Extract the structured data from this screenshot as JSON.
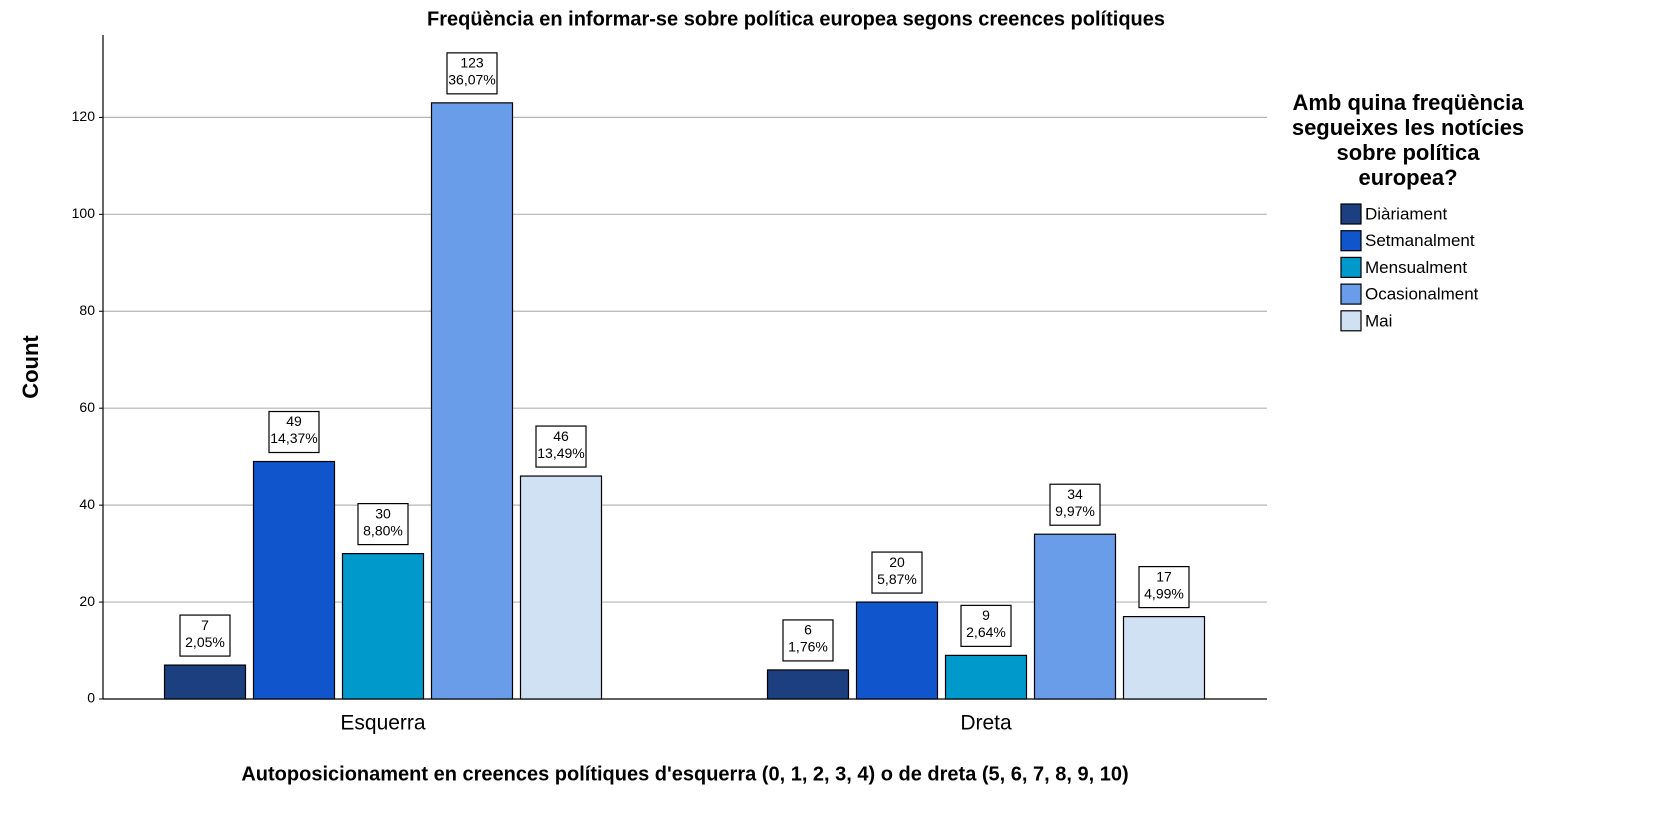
{
  "chart_data": {
    "type": "bar",
    "title": "Freqüència en informar-se sobre política europea segons creences polítiques",
    "x_label": "Autoposicionament en creences polítiques d'esquerra (0, 1, 2, 3, 4) o de dreta (5, 6, 7, 8, 9, 10)",
    "y_label": "Count",
    "legend_title": "Amb quina freqüència segueixes les notícies sobre política europea?",
    "categories": [
      "Esquerra",
      "Dreta"
    ],
    "series": [
      {
        "name": "Diàriament",
        "color": "#1c3f80",
        "values": [
          7,
          6
        ],
        "percent_labels": [
          "2,05%",
          "1,76%"
        ]
      },
      {
        "name": "Setmanalment",
        "color": "#1155cc",
        "values": [
          49,
          20
        ],
        "percent_labels": [
          "14,37%",
          "5,87%"
        ]
      },
      {
        "name": "Mensualment",
        "color": "#0099cc",
        "values": [
          30,
          9
        ],
        "percent_labels": [
          "8,80%",
          "2,64%"
        ]
      },
      {
        "name": "Ocasionalment",
        "color": "#6a9de9",
        "values": [
          123,
          34
        ],
        "percent_labels": [
          "36,07%",
          "9,97%"
        ]
      },
      {
        "name": "Mai",
        "color": "#cfe1f3",
        "values": [
          46,
          17
        ],
        "percent_labels": [
          "13,49%",
          "4,99%"
        ]
      }
    ],
    "ylim": [
      0,
      137
    ],
    "yticks": [
      0,
      20,
      40,
      60,
      80,
      100,
      120
    ],
    "grid": true,
    "legend": "right"
  }
}
